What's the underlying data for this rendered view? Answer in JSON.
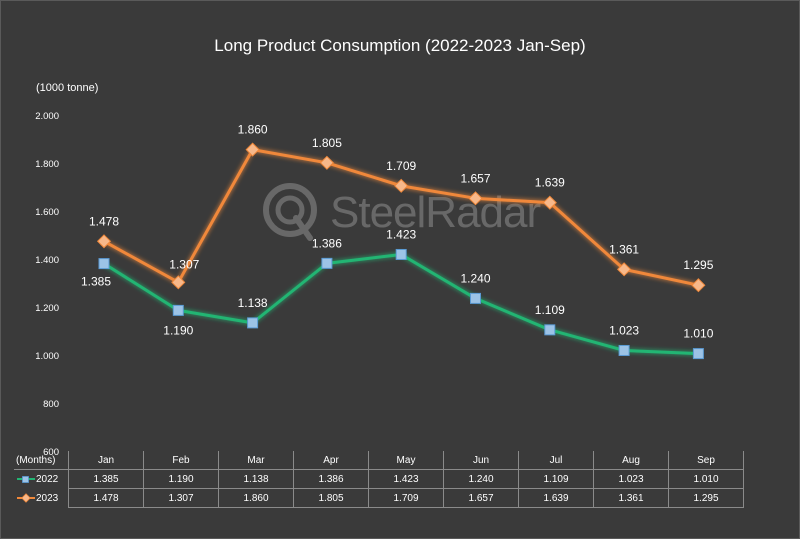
{
  "chart_data": {
    "type": "line",
    "title": "Long Product Consumption (2022-2023 Jan-Sep)",
    "unit_label": "(1000 tonne)",
    "xlabel": "(Months)",
    "categories": [
      "Jan",
      "Feb",
      "Mar",
      "Apr",
      "May",
      "Jun",
      "Jul",
      "Aug",
      "Sep"
    ],
    "y_ticks": [
      "600",
      "800",
      "1.000",
      "1.200",
      "1.400",
      "1.600",
      "1.800",
      "2.000"
    ],
    "ylim": [
      600,
      2000
    ],
    "grid": false,
    "legend": "table-bottom",
    "series": [
      {
        "name": "2022",
        "color": "#22b573",
        "marker": "square",
        "values": [
          1385,
          1190,
          1138,
          1386,
          1423,
          1240,
          1109,
          1023,
          1010
        ],
        "labels": [
          "1.385",
          "1.190",
          "1.138",
          "1.386",
          "1.423",
          "1.240",
          "1.109",
          "1.023",
          "1.010"
        ]
      },
      {
        "name": "2023",
        "color": "#f0883a",
        "marker": "diamond",
        "values": [
          1478,
          1307,
          1860,
          1805,
          1709,
          1657,
          1639,
          1361,
          1295
        ],
        "labels": [
          "1.478",
          "1.307",
          "1.860",
          "1.805",
          "1.709",
          "1.657",
          "1.639",
          "1.361",
          "1.295"
        ]
      }
    ]
  },
  "watermark": {
    "text": "SteelRadar",
    "icon": "steelradar-logo-icon"
  }
}
